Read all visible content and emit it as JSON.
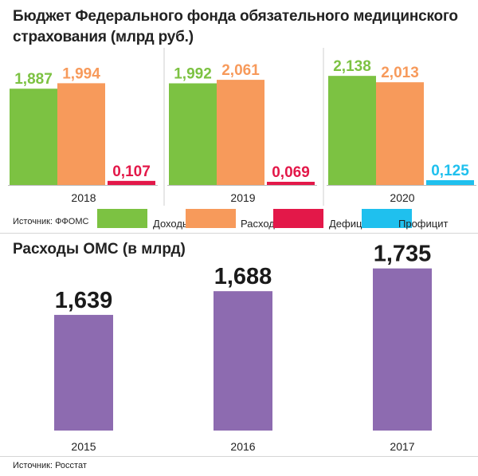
{
  "chart_data": [
    {
      "type": "bar",
      "title": "Бюджет Федерального фонда обязательного медицинского страхования (млрд руб.)",
      "categories": [
        "2018",
        "2019",
        "2020"
      ],
      "series": [
        {
          "name": "Доходы",
          "color": "#7cc242",
          "values": [
            1.887,
            1.992,
            2.138
          ],
          "labels": [
            "1,887",
            "1,992",
            "2,138"
          ]
        },
        {
          "name": "Расходы",
          "color": "#f79a5b",
          "values": [
            1.994,
            2.061,
            2.013
          ],
          "labels": [
            "1,994",
            "2,061",
            "2,013"
          ]
        },
        {
          "name": "Дефицит",
          "color": "#e31849",
          "values": [
            0.107,
            0.069,
            null
          ],
          "labels": [
            "0,107",
            "0,069",
            null
          ]
        },
        {
          "name": "Профицит",
          "color": "#1fc0ee",
          "values": [
            null,
            null,
            0.125
          ],
          "labels": [
            null,
            null,
            "0,125"
          ]
        }
      ],
      "source": "Источник: ФФОМС"
    },
    {
      "type": "bar",
      "title": "Расходы ОМС (в млрд)",
      "categories": [
        "2015",
        "2016",
        "2017"
      ],
      "values": [
        1.639,
        1.688,
        1.735
      ],
      "labels": [
        "1,639",
        "1,688",
        "1,735"
      ],
      "color": "#8d6bb0",
      "source": "Источник: Росстат"
    }
  ]
}
